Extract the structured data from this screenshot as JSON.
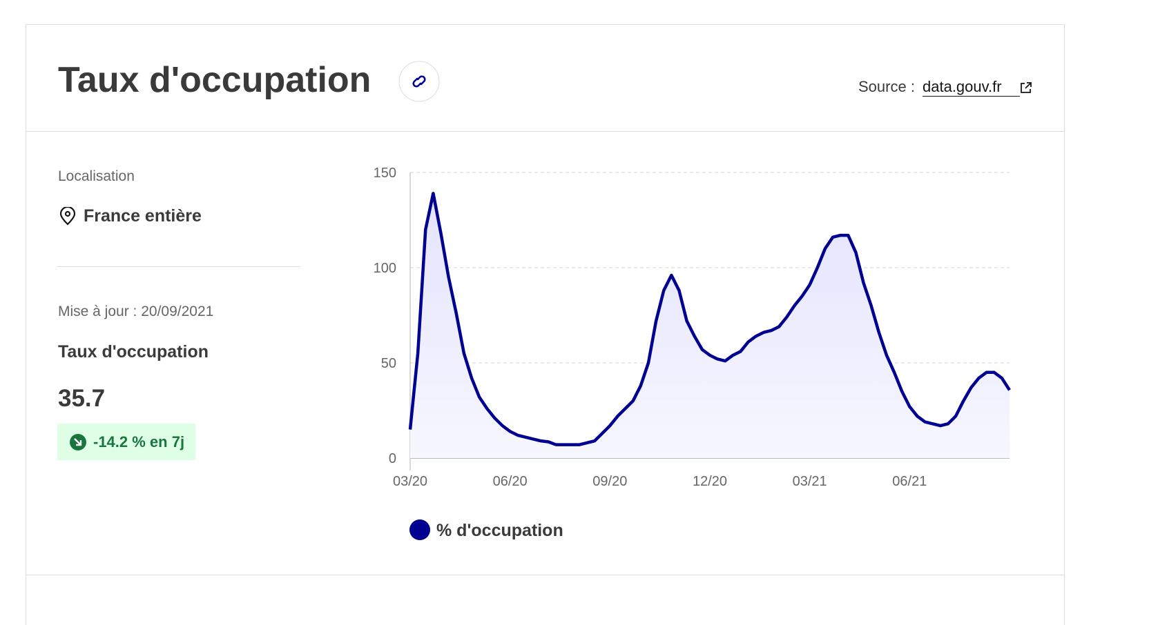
{
  "header": {
    "title": "Taux d'occupation",
    "source_label": "Source :",
    "source_link": "data.gouv.fr"
  },
  "sidebar": {
    "location_label": "Localisation",
    "location": "France entière",
    "updated": "Mise à jour : 20/09/2021",
    "indicator": "Taux d'occupation",
    "indicator_value": "35.7",
    "trend": "-14.2 % en 7j"
  },
  "chart_data": {
    "type": "line",
    "categories": [
      "03/20",
      null,
      null,
      null,
      null,
      null,
      null,
      null,
      null,
      null,
      null,
      null,
      null,
      "06/20",
      null,
      null,
      null,
      null,
      null,
      null,
      null,
      null,
      null,
      null,
      null,
      null,
      "09/20",
      null,
      null,
      null,
      null,
      null,
      null,
      null,
      null,
      null,
      null,
      null,
      null,
      "12/20",
      null,
      null,
      null,
      null,
      null,
      null,
      null,
      null,
      null,
      null,
      null,
      null,
      "03/21",
      null,
      null,
      null,
      null,
      null,
      null,
      null,
      null,
      null,
      null,
      null,
      null,
      "06/21",
      null,
      null,
      null,
      null,
      null,
      null,
      null,
      null,
      null,
      null,
      null,
      null,
      null
    ],
    "series": [
      {
        "name": "% d'occupation",
        "color": "#000091",
        "values": [
          15,
          55,
          120,
          139,
          118,
          95,
          76,
          55,
          42,
          32,
          26,
          21,
          17,
          14,
          12,
          11,
          10,
          9,
          8.5,
          7,
          7,
          7,
          7,
          8,
          9,
          13,
          17,
          22,
          26,
          30,
          38,
          50,
          72,
          88,
          96,
          88,
          72,
          64,
          57,
          54,
          52,
          51,
          54,
          56,
          61,
          64,
          66,
          67,
          69,
          74,
          80,
          85,
          91,
          100,
          110,
          116,
          117,
          117,
          108,
          92,
          80,
          66,
          54,
          45,
          35,
          27,
          22,
          19,
          18,
          17,
          18,
          22,
          30,
          37,
          42,
          45,
          45,
          42,
          35.7
        ]
      }
    ],
    "ylim": [
      0,
      150
    ],
    "yticks": [
      0,
      50,
      100,
      150
    ],
    "grid": true
  }
}
